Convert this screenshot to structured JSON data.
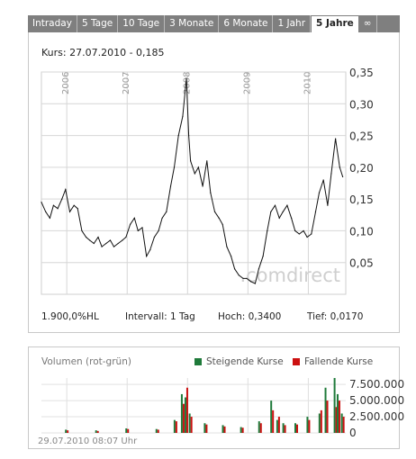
{
  "tabs": [
    {
      "label": "Intraday"
    },
    {
      "label": "5 Tage"
    },
    {
      "label": "10 Tage"
    },
    {
      "label": "3 Monate"
    },
    {
      "label": "6 Monate"
    },
    {
      "label": "1 Jahr"
    },
    {
      "label": "5 Jahre",
      "active": true
    },
    {
      "label": "∞"
    }
  ],
  "kurs_label": "Kurs: 27.07.2010 - 0,185",
  "watermark": ".comdirect",
  "stats": {
    "hl": "1.900,0%HL",
    "intervall": "Intervall: 1 Tag",
    "hoch": "Hoch: 0,3400",
    "tief": "Tief: 0,0170"
  },
  "volume": {
    "title": "Volumen (rot-grün)",
    "legend_up": "Steigende Kurse",
    "legend_down": "Fallende Kurse",
    "color_up": "#1f7a3a",
    "color_down": "#cc1111",
    "y_ticks": [
      "7.500.000",
      "5.000.000",
      "2.500.000",
      "0"
    ]
  },
  "timestamp": "29.07.2010 08:07 Uhr",
  "chart_data": [
    {
      "type": "line",
      "x_ticks": [
        "2006",
        "2007",
        "2008",
        "2009",
        "2010"
      ],
      "y_ticks": [
        "0,35",
        "0,30",
        "0,25",
        "0,20",
        "0,15",
        "0,10",
        "0,05"
      ],
      "ylim": [
        0,
        0.35
      ],
      "grid": true,
      "series": [
        {
          "x": [
            2005.58,
            2005.65,
            2005.72,
            2005.78,
            2005.85,
            2005.92,
            2005.98,
            2006.05,
            2006.12,
            2006.18,
            2006.25,
            2006.32,
            2006.38,
            2006.45,
            2006.52,
            2006.58,
            2006.65,
            2006.72,
            2006.78,
            2006.85,
            2006.92,
            2006.98,
            2007.05,
            2007.12,
            2007.18,
            2007.25,
            2007.32,
            2007.38,
            2007.45,
            2007.52,
            2007.58,
            2007.65,
            2007.72,
            2007.78,
            2007.85,
            2007.92,
            2007.98,
            2008.02,
            2008.05,
            2008.12,
            2008.18,
            2008.25,
            2008.32,
            2008.38,
            2008.45,
            2008.52,
            2008.58,
            2008.65,
            2008.72,
            2008.78,
            2008.85,
            2008.92,
            2008.98,
            2009.05,
            2009.12,
            2009.18,
            2009.25,
            2009.32,
            2009.38,
            2009.45,
            2009.52,
            2009.58,
            2009.65,
            2009.72,
            2009.78,
            2009.85,
            2009.92,
            2009.98,
            2010.05,
            2010.12,
            2010.18,
            2010.25,
            2010.32,
            2010.38,
            2010.45,
            2010.52,
            2010.57
          ],
          "y": [
            0.145,
            0.13,
            0.12,
            0.14,
            0.135,
            0.15,
            0.165,
            0.13,
            0.14,
            0.135,
            0.1,
            0.09,
            0.085,
            0.08,
            0.09,
            0.075,
            0.08,
            0.085,
            0.075,
            0.08,
            0.085,
            0.09,
            0.11,
            0.12,
            0.1,
            0.105,
            0.06,
            0.07,
            0.09,
            0.1,
            0.12,
            0.13,
            0.17,
            0.2,
            0.25,
            0.28,
            0.34,
            0.25,
            0.21,
            0.19,
            0.2,
            0.17,
            0.21,
            0.16,
            0.13,
            0.12,
            0.11,
            0.075,
            0.06,
            0.04,
            0.03,
            0.025,
            0.025,
            0.02,
            0.017,
            0.04,
            0.06,
            0.1,
            0.13,
            0.14,
            0.12,
            0.13,
            0.14,
            0.12,
            0.1,
            0.095,
            0.1,
            0.09,
            0.095,
            0.13,
            0.16,
            0.18,
            0.14,
            0.19,
            0.245,
            0.2,
            0.185
          ]
        }
      ]
    },
    {
      "type": "bar",
      "ylim": [
        0,
        8500000
      ],
      "series": [
        {
          "name": "Steigende Kurse",
          "color": "#1f7a3a"
        },
        {
          "name": "Fallende Kurse",
          "color": "#cc1111"
        }
      ],
      "x": [
        2006.0,
        2006.5,
        2007.0,
        2007.5,
        2007.8,
        2007.92,
        2007.98,
        2008.05,
        2008.3,
        2008.6,
        2008.9,
        2009.2,
        2009.4,
        2009.5,
        2009.6,
        2009.8,
        2010.0,
        2010.2,
        2010.3,
        2010.45,
        2010.5,
        2010.57
      ],
      "up": [
        500000,
        400000,
        700000,
        600000,
        2000000,
        6000000,
        5500000,
        3000000,
        1500000,
        1200000,
        900000,
        1800000,
        5000000,
        2000000,
        1500000,
        1500000,
        2500000,
        3000000,
        7000000,
        8500000,
        6000000,
        3000000
      ],
      "down": [
        400000,
        300000,
        600000,
        500000,
        1800000,
        4500000,
        7000000,
        2500000,
        1300000,
        1000000,
        800000,
        1500000,
        3500000,
        2500000,
        1200000,
        1300000,
        2000000,
        3500000,
        5000000,
        4000000,
        5000000,
        2500000
      ]
    }
  ]
}
